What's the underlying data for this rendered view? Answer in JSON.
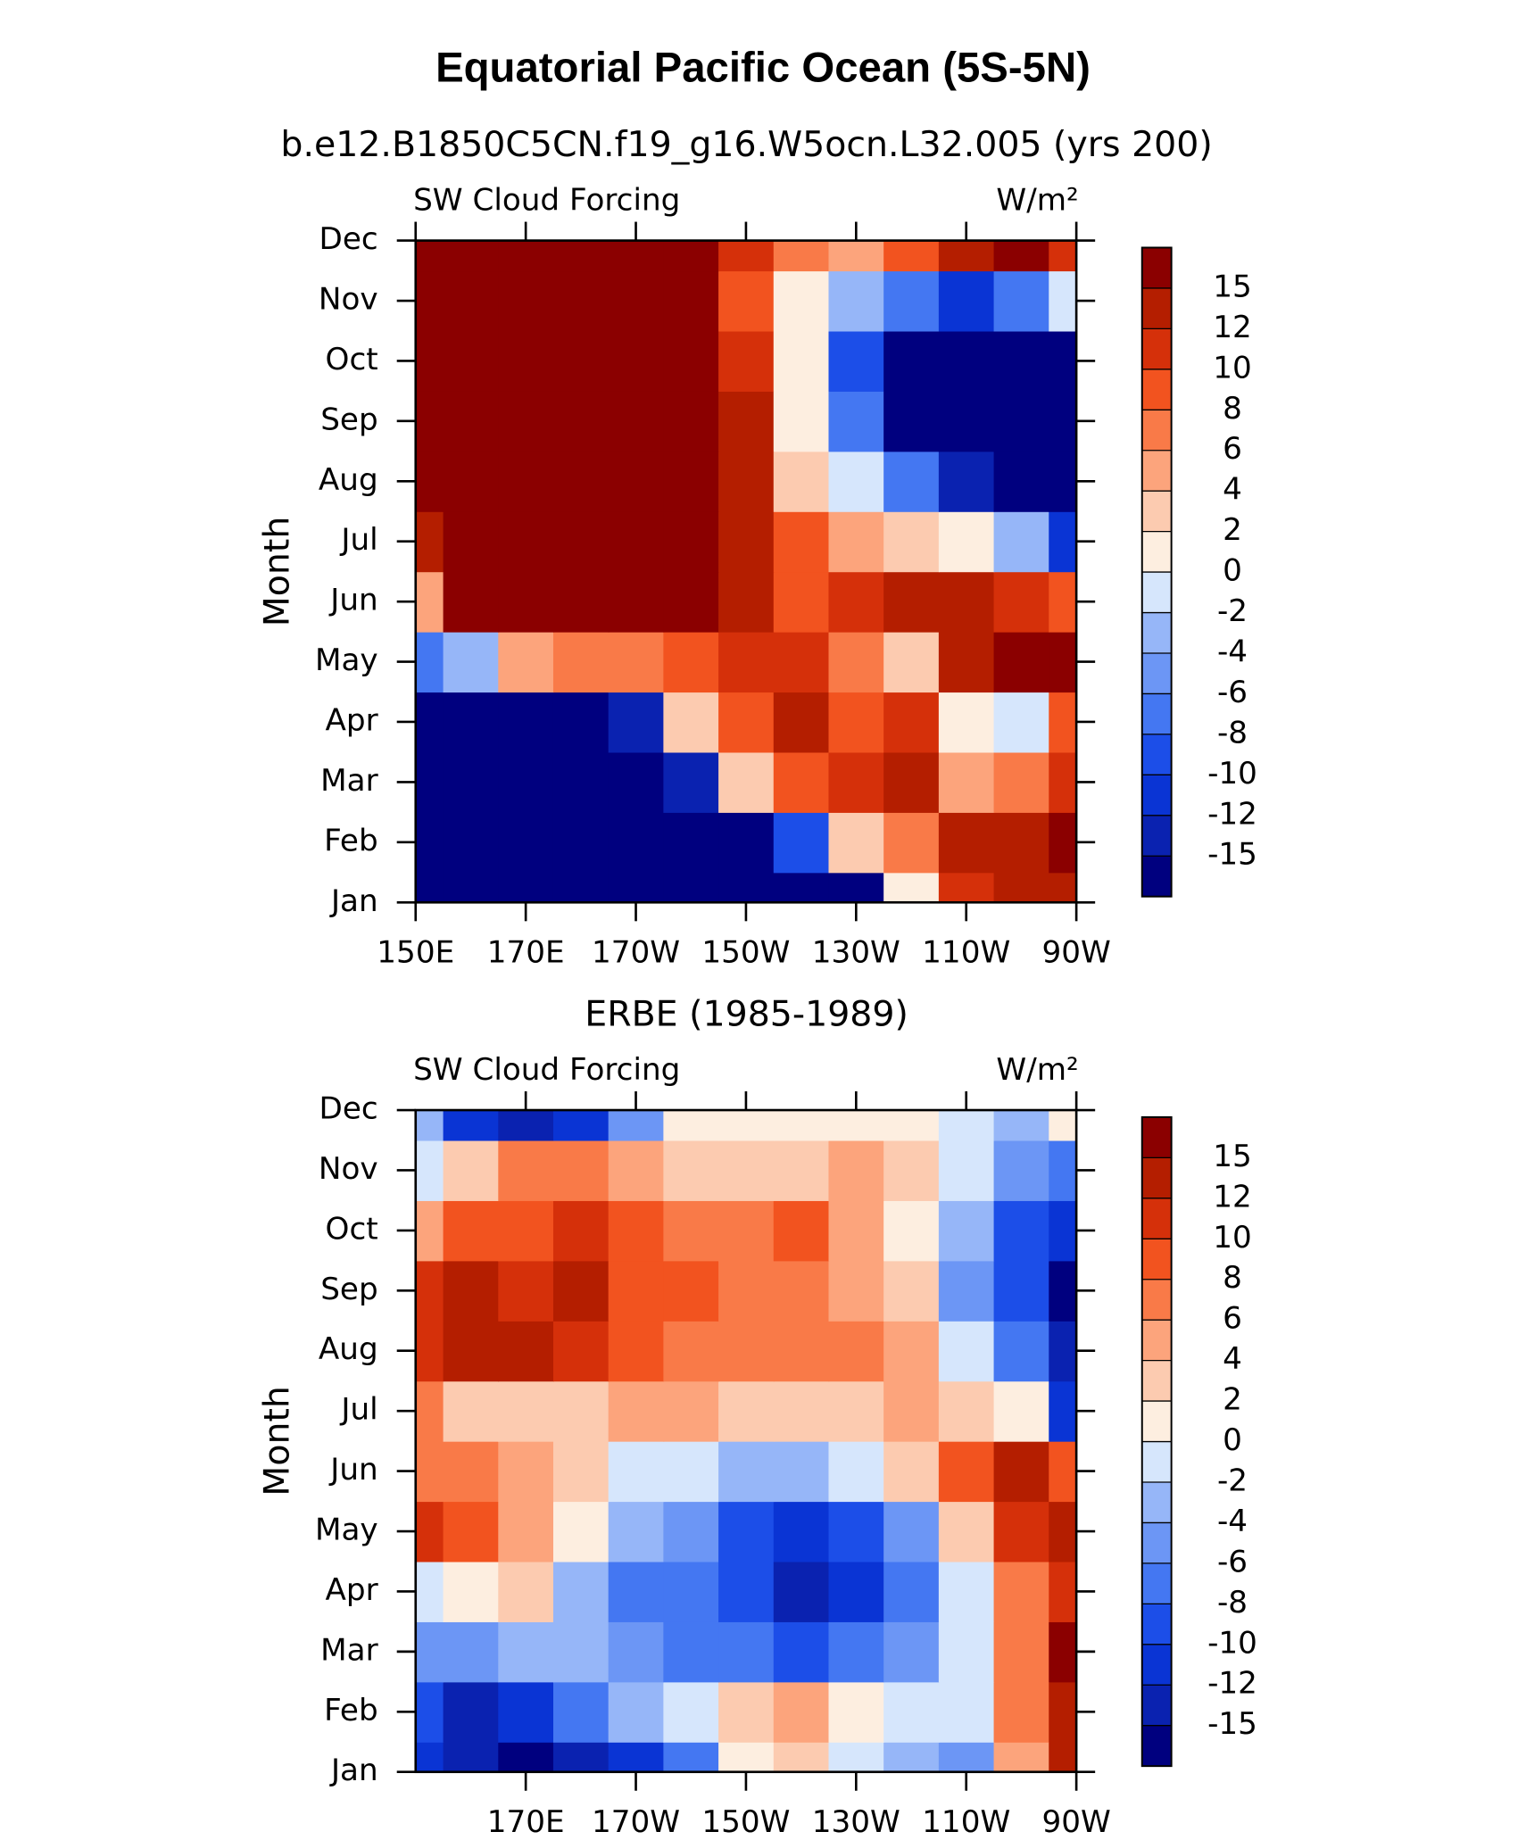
{
  "title": "Equatorial Pacific Ocean (5S-5N)",
  "chart_data": [
    {
      "type": "contour",
      "title": "b.e12.B1850C5CN.f19_g16.W5ocn.L32.005 (yrs 200)",
      "left_label": "SW Cloud Forcing",
      "right_label": "W/m²",
      "ylabel": "Month",
      "categories": [
        "Jan",
        "Feb",
        "Mar",
        "Apr",
        "May",
        "Jun",
        "Jul",
        "Aug",
        "Sep",
        "Oct",
        "Nov",
        "Dec"
      ],
      "x": [
        150,
        160,
        170,
        180,
        190,
        200,
        210,
        220,
        230,
        240,
        250,
        260,
        270
      ],
      "xlim": [
        150,
        270
      ],
      "xticks": [
        {
          "value": 150,
          "label": "150E"
        },
        {
          "value": 170,
          "label": "170E"
        },
        {
          "value": 190,
          "label": "170W"
        },
        {
          "value": 210,
          "label": "150W"
        },
        {
          "value": 230,
          "label": "130W"
        },
        {
          "value": 250,
          "label": "110W"
        },
        {
          "value": 270,
          "label": "90W"
        }
      ],
      "levels": [
        -15,
        -12,
        -10,
        -8,
        -6,
        -4,
        -2,
        0,
        2,
        4,
        6,
        8,
        10,
        12,
        15
      ],
      "colors": [
        "#00007f",
        "#0a22b0",
        "#0a34d4",
        "#1c4ee8",
        "#4477f2",
        "#6c96f5",
        "#96b6f8",
        "#d6e6fc",
        "#fdeee0",
        "#fccbb0",
        "#fca47c",
        "#f97a48",
        "#f2531f",
        "#d5300a",
        "#b41e00",
        "#8b0000"
      ],
      "values": [
        [
          -18,
          -18,
          -18,
          -18,
          -18,
          -18,
          -18,
          -18,
          -16,
          0,
          10,
          12,
          14
        ],
        [
          -17,
          -18,
          -18,
          -18,
          -18,
          -18,
          -16,
          -10,
          2,
          6,
          12,
          13,
          16
        ],
        [
          -18,
          -18,
          -18,
          -18,
          -18,
          -14,
          2,
          8,
          10,
          12,
          4,
          6,
          10
        ],
        [
          -16,
          -18,
          -18,
          -18,
          -14,
          2,
          8,
          12,
          8,
          10,
          0,
          -2,
          8
        ],
        [
          -8,
          -4,
          4,
          6,
          6,
          8,
          10,
          10,
          6,
          2,
          12,
          16,
          16
        ],
        [
          4,
          16,
          16,
          16,
          16,
          16,
          12,
          8,
          10,
          12,
          12,
          10,
          8
        ],
        [
          12,
          16,
          16,
          16,
          16,
          16,
          14,
          8,
          4,
          2,
          0,
          -4,
          -12
        ],
        [
          16,
          16,
          16,
          16,
          16,
          16,
          12,
          2,
          -2,
          -8,
          -14,
          -16,
          -16
        ],
        [
          16,
          16,
          16,
          16,
          16,
          16,
          12,
          0,
          -8,
          -18,
          -18,
          -18,
          -18
        ],
        [
          16,
          16,
          16,
          16,
          16,
          16,
          10,
          0,
          -10,
          -18,
          -18,
          -18,
          -16
        ],
        [
          16,
          16,
          16,
          16,
          16,
          16,
          8,
          0,
          -4,
          -8,
          -12,
          -8,
          -2
        ],
        [
          16,
          16,
          16,
          16,
          16,
          16,
          10,
          6,
          4,
          8,
          14,
          16,
          10
        ]
      ]
    },
    {
      "type": "contour",
      "title": "ERBE (1985-1989)",
      "left_label": "SW Cloud Forcing",
      "right_label": "W/m²",
      "ylabel": "Month",
      "categories": [
        "Jan",
        "Feb",
        "Mar",
        "Apr",
        "May",
        "Jun",
        "Jul",
        "Aug",
        "Sep",
        "Oct",
        "Nov",
        "Dec"
      ],
      "x": [
        150,
        160,
        170,
        180,
        190,
        200,
        210,
        220,
        230,
        240,
        250,
        260,
        270
      ],
      "xlim": [
        150,
        270
      ],
      "xticks": [
        {
          "value": 170,
          "label": "170E"
        },
        {
          "value": 190,
          "label": "170W"
        },
        {
          "value": 210,
          "label": "150W"
        },
        {
          "value": 230,
          "label": "130W"
        },
        {
          "value": 250,
          "label": "110W"
        },
        {
          "value": 270,
          "label": "90W"
        }
      ],
      "levels": [
        -15,
        -12,
        -10,
        -8,
        -6,
        -4,
        -2,
        0,
        2,
        4,
        6,
        8,
        10,
        12,
        15
      ],
      "colors": [
        "#00007f",
        "#0a22b0",
        "#0a34d4",
        "#1c4ee8",
        "#4477f2",
        "#6c96f5",
        "#96b6f8",
        "#d6e6fc",
        "#fdeee0",
        "#fccbb0",
        "#fca47c",
        "#f97a48",
        "#f2531f",
        "#d5300a",
        "#b41e00",
        "#8b0000"
      ],
      "values": [
        [
          -12,
          -14,
          -16,
          -14,
          -12,
          -8,
          0,
          2,
          -2,
          -4,
          -6,
          4,
          14
        ],
        [
          -10,
          -14,
          -12,
          -8,
          -4,
          -2,
          2,
          4,
          0,
          -2,
          -2,
          6,
          14
        ],
        [
          -6,
          -6,
          -4,
          -4,
          -6,
          -8,
          -8,
          -10,
          -8,
          -6,
          -2,
          6,
          16
        ],
        [
          -2,
          0,
          2,
          -4,
          -8,
          -8,
          -10,
          -14,
          -12,
          -8,
          -2,
          6,
          10
        ],
        [
          10,
          8,
          4,
          0,
          -4,
          -6,
          -10,
          -12,
          -10,
          -6,
          2,
          10,
          12
        ],
        [
          6,
          6,
          4,
          2,
          -2,
          -2,
          -4,
          -4,
          -2,
          2,
          8,
          12,
          8
        ],
        [
          6,
          2,
          2,
          2,
          4,
          4,
          2,
          2,
          2,
          4,
          2,
          0,
          -12
        ],
        [
          10,
          12,
          12,
          10,
          8,
          6,
          6,
          6,
          6,
          4,
          -2,
          -8,
          -14
        ],
        [
          10,
          14,
          10,
          12,
          8,
          8,
          6,
          6,
          4,
          2,
          -6,
          -10,
          -16
        ],
        [
          4,
          8,
          8,
          10,
          8,
          6,
          6,
          8,
          4,
          0,
          -4,
          -10,
          -12
        ],
        [
          -2,
          2,
          6,
          6,
          4,
          2,
          2,
          2,
          4,
          2,
          -2,
          -6,
          -8
        ],
        [
          -4,
          -12,
          -14,
          -12,
          -6,
          0,
          0,
          0,
          0,
          0,
          -2,
          -4,
          0
        ]
      ]
    }
  ]
}
